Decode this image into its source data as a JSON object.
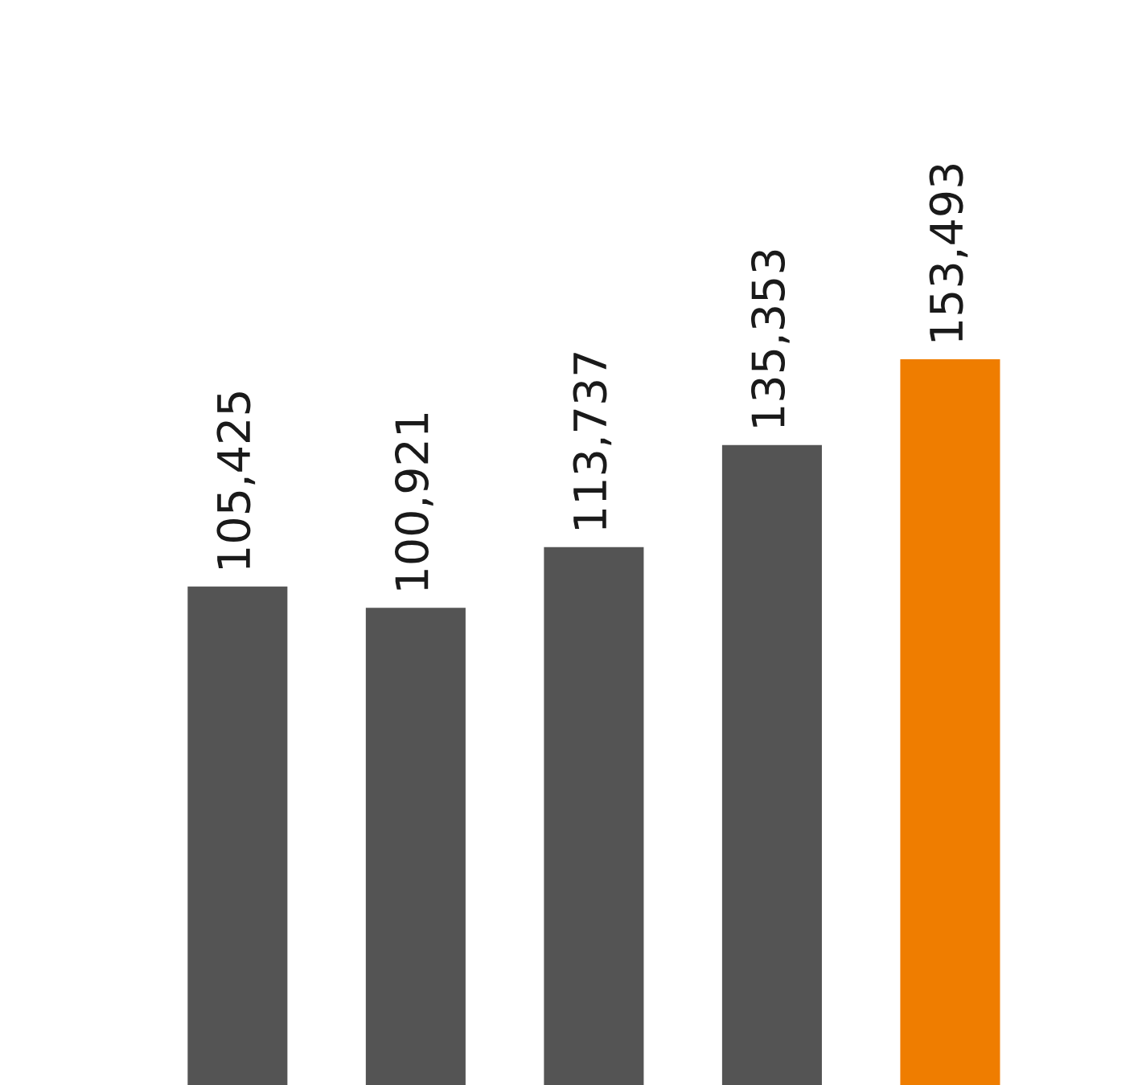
{
  "chart_data": {
    "type": "bar",
    "categories": [
      null,
      null,
      null,
      null,
      null
    ],
    "values": [
      105425,
      100921,
      113737,
      135353,
      153493
    ],
    "colors": [
      "#545454",
      "#545454",
      "#545454",
      "#545454",
      "#ef7d00"
    ],
    "value_labels": [
      "105,425",
      "100,921",
      "113,737",
      "135,353",
      "153,493"
    ],
    "grid": false,
    "legend": false,
    "tick_labels": false
  }
}
